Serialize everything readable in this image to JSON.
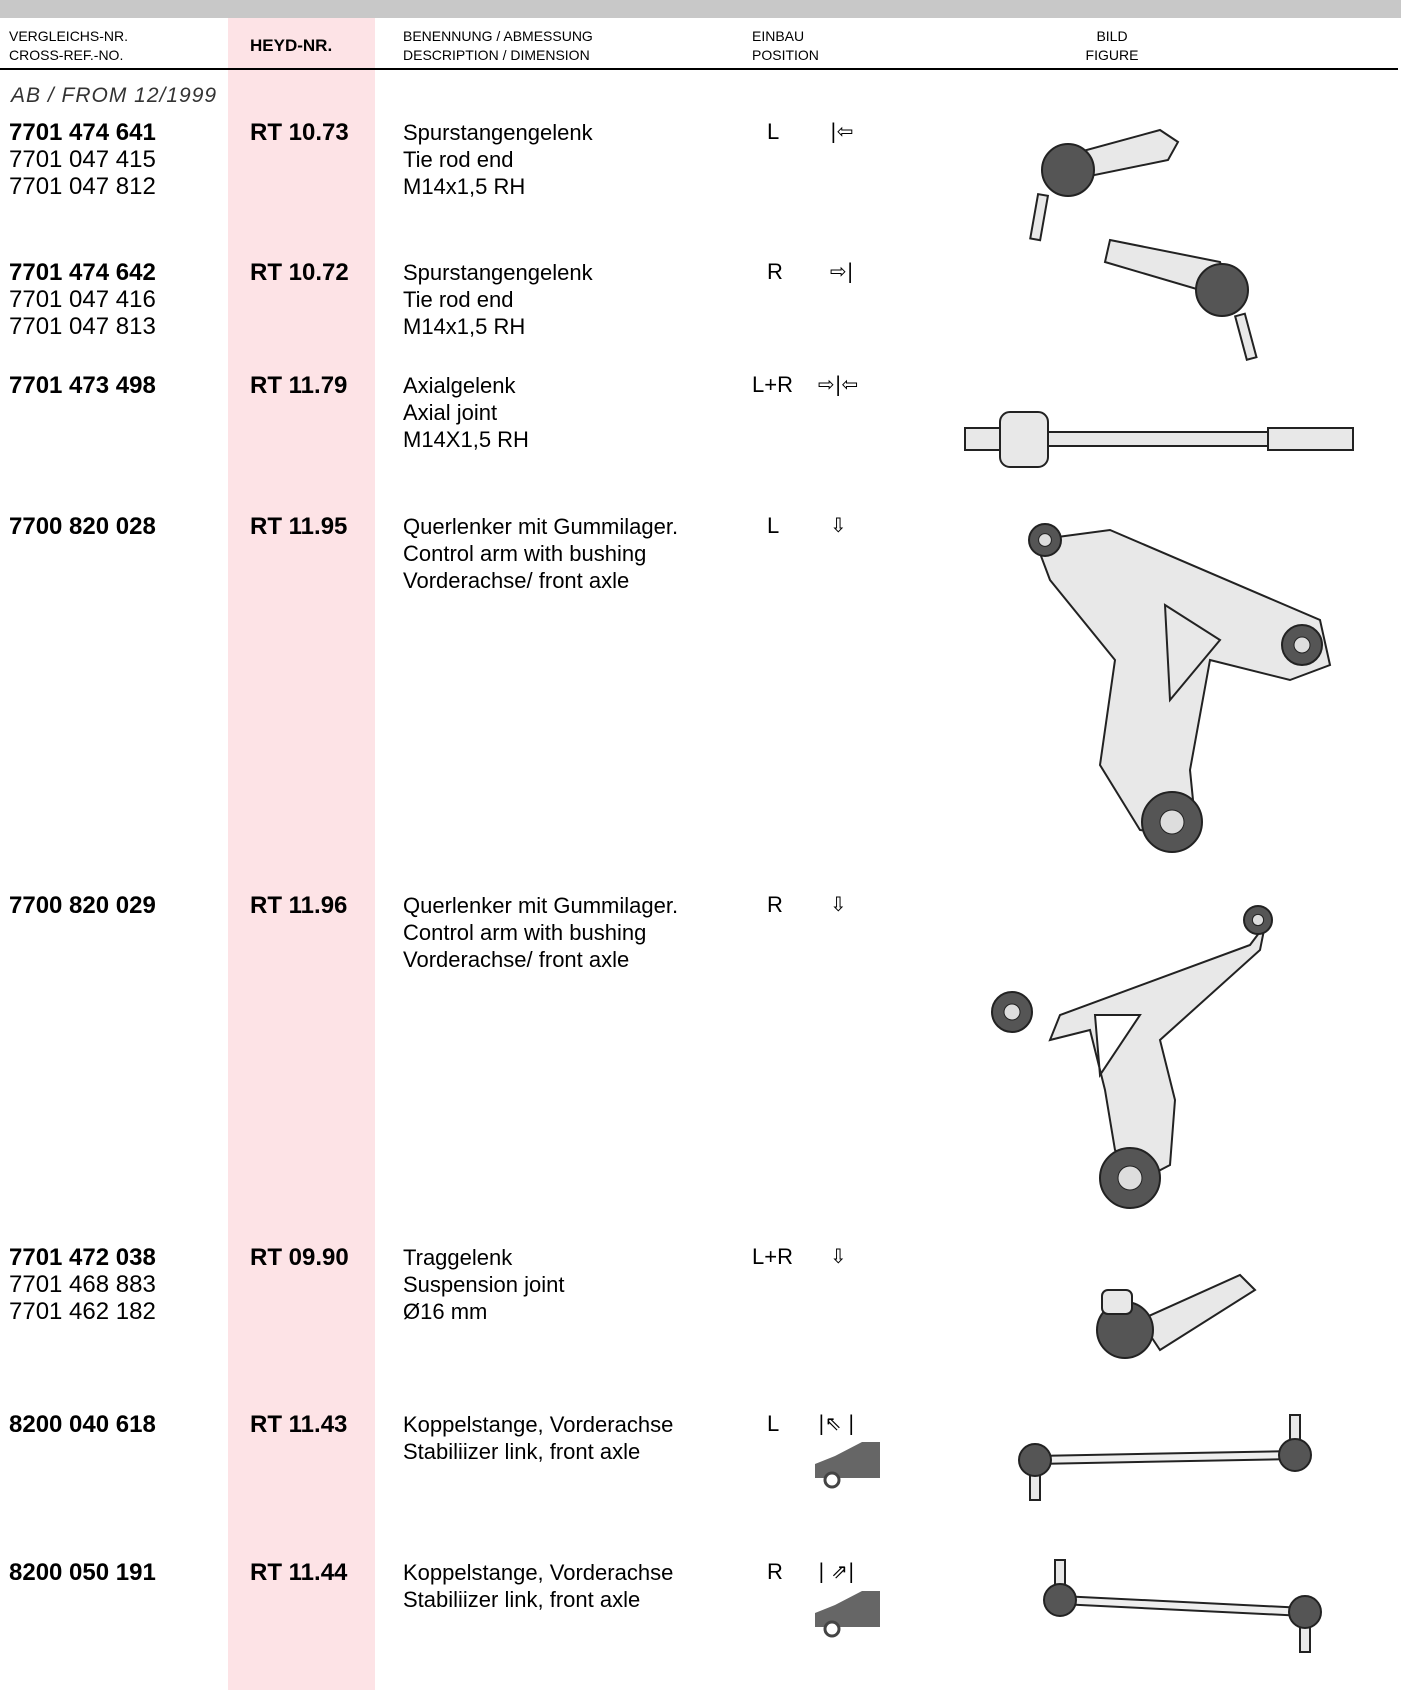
{
  "header": {
    "columns": [
      [
        "VERGLEICHS-NR.",
        "CROSS-REF.-NO."
      ],
      [
        "HEYD-NR."
      ],
      [
        "BENENNUNG / ABMESSUNG",
        "DESCRIPTION / DIMENSION"
      ],
      [
        "EINBAU",
        "POSITION"
      ],
      [
        "BILD",
        "FIGURE"
      ]
    ]
  },
  "section_note": "AB / FROM 12/1999",
  "rows": [
    {
      "crossref": [
        "7701 474 641",
        "7701 047 415",
        "7701 047 812"
      ],
      "heyd": "RT 10.73",
      "description": [
        "Spurstangengelenk",
        "Tie rod end",
        "M14x1,5 RH"
      ],
      "position": "L",
      "arrows": "|⇦"
    },
    {
      "crossref": [
        "7701 474 642",
        "7701 047 416",
        "7701 047 813"
      ],
      "heyd": "RT 10.72",
      "description": [
        "Spurstangengelenk",
        "Tie rod end",
        "M14x1,5 RH"
      ],
      "position": "R",
      "arrows": "⇨|"
    },
    {
      "crossref": [
        "7701 473 498"
      ],
      "heyd": "RT 11.79",
      "description": [
        "Axialgelenk",
        "Axial joint",
        "M14X1,5 RH"
      ],
      "position": "L+R",
      "arrows": "⇨|⇦"
    },
    {
      "crossref": [
        "7700 820 028"
      ],
      "heyd": "RT 11.95",
      "description": [
        "Querlenker mit Gummilager.",
        "Control arm with bushing",
        "Vorderachse/ front axle"
      ],
      "position": "L",
      "arrows": "⇩"
    },
    {
      "crossref": [
        "7700 820 029"
      ],
      "heyd": "RT 11.96",
      "description": [
        "Querlenker mit Gummilager.",
        "Control arm with bushing",
        "Vorderachse/ front axle"
      ],
      "position": "R",
      "arrows": "⇩"
    },
    {
      "crossref": [
        "7701 472 038",
        "7701 468 883",
        "7701 462 182"
      ],
      "heyd": "RT 09.90",
      "description": [
        "Traggelenk",
        "Suspension joint",
        "Ø16 mm"
      ],
      "position": "L+R",
      "arrows": "⇩"
    },
    {
      "crossref": [
        "8200 040 618"
      ],
      "heyd": "RT 11.43",
      "description": [
        "Koppelstange, Vorderachse",
        "Stabiliizer link, front axle"
      ],
      "position": "L",
      "arrows": "|⇖ |"
    },
    {
      "crossref": [
        "8200 050 191"
      ],
      "heyd": "RT 11.44",
      "description": [
        "Koppelstange, Vorderachse",
        "Stabiliizer link, front axle"
      ],
      "position": "R",
      "arrows": "| ⇗|"
    }
  ]
}
